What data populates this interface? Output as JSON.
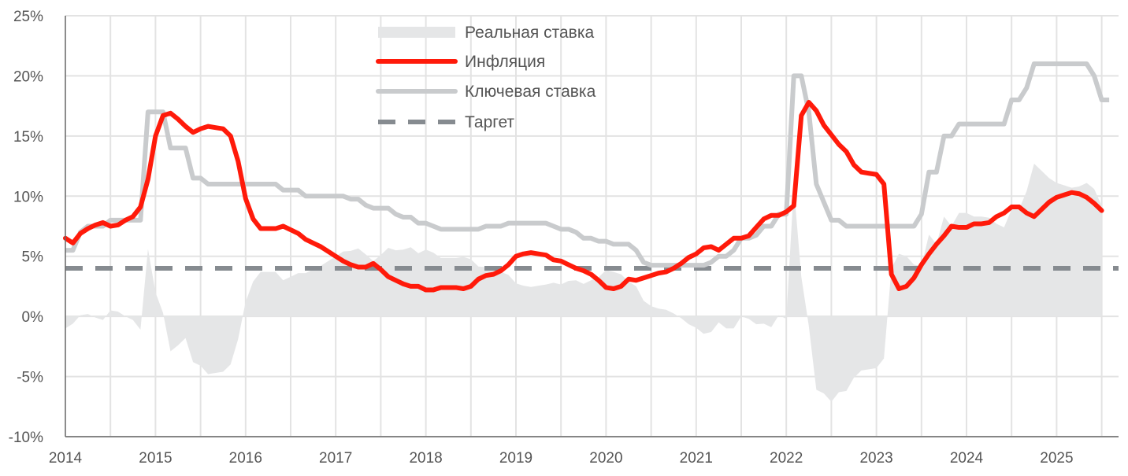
{
  "chart_data": {
    "type": "line",
    "title": "",
    "xlabel": "",
    "ylabel": "",
    "x_start": 2014.0,
    "x_step_months": 1,
    "xlim": [
      2014,
      2025.7
    ],
    "ylim": [
      -10,
      25
    ],
    "x_ticks": [
      "2014",
      "2015",
      "2016",
      "2017",
      "2018",
      "2019",
      "2020",
      "2021",
      "2022",
      "2023",
      "2024",
      "2025"
    ],
    "y_ticks": [
      "25%",
      "20%",
      "15%",
      "10%",
      "5%",
      "0%",
      "-5%",
      "-10%"
    ],
    "y_tick_values": [
      25,
      20,
      15,
      10,
      5,
      0,
      -5,
      -10
    ],
    "grid": true,
    "legend_position": "top-center",
    "colors": {
      "real": "#e5e6e7",
      "inflation": "#ff1a0a",
      "key": "#c9cbcd",
      "target": "#868b90",
      "axis": "#555555",
      "grid": "#e3e3e3"
    },
    "series": [
      {
        "name": "Реальная ставка",
        "kind": "area",
        "values": [
          -1,
          -0.6,
          0.1,
          0.2,
          -0.1,
          -0.3,
          0.5,
          0.4,
          0,
          -0.3,
          -1.1,
          5.6,
          2,
          0.3,
          -2.9,
          -2.4,
          -1.8,
          -3.8,
          -4.1,
          -4.8,
          -4.7,
          -4.6,
          -4,
          -1.9,
          1.2,
          2.9,
          3.7,
          3.7,
          3.7,
          3,
          3.3,
          3.6,
          3.6,
          3.9,
          4.2,
          4.6,
          5,
          5.4,
          5.45,
          5.65,
          5.15,
          4.6,
          5.1,
          5.7,
          5.5,
          5.55,
          5.75,
          5.25,
          5.55,
          5.3,
          4.85,
          4.85,
          4.85,
          4.95,
          4.75,
          4.15,
          4.1,
          4,
          3.7,
          3.45,
          2.75,
          2.55,
          2.45,
          2.55,
          2.65,
          2.8,
          2.65,
          2.95,
          3,
          2.7,
          3,
          3.25,
          3.85,
          3.7,
          3.5,
          2.9,
          2.5,
          1.3,
          0.85,
          0.65,
          0.55,
          0.25,
          -0.15,
          -0.65,
          -0.95,
          -1.45,
          -1.3,
          -0.5,
          -1,
          -1,
          0,
          -0.2,
          -0.65,
          -0.6,
          -0.9,
          0.1,
          -0.2,
          10.8,
          3.3,
          -0.8,
          -6.1,
          -6.4,
          -7.1,
          -6.3,
          -6.2,
          -5.1,
          -4.5,
          -4.4,
          -4.3,
          -3.5,
          4,
          5.2,
          5,
          4.3,
          4.2,
          6.8,
          6,
          8.3,
          7.5,
          8.6,
          8.6,
          8.3,
          8.3,
          8.2,
          7.7,
          7.4,
          8.9,
          8.9,
          10.4,
          12.7,
          12.1,
          11.5,
          11.1,
          10.9,
          10.7,
          10.8,
          11.1,
          10.6,
          9.2
        ]
      },
      {
        "name": "Инфляция",
        "kind": "line",
        "values": [
          6.5,
          6.1,
          6.9,
          7.3,
          7.6,
          7.8,
          7.5,
          7.6,
          8.0,
          8.3,
          9.1,
          11.4,
          15.0,
          16.7,
          16.9,
          16.4,
          15.8,
          15.3,
          15.6,
          15.8,
          15.7,
          15.6,
          15.0,
          12.9,
          9.8,
          8.1,
          7.3,
          7.3,
          7.3,
          7.5,
          7.2,
          6.9,
          6.4,
          6.1,
          5.8,
          5.4,
          5.0,
          4.6,
          4.3,
          4.1,
          4.1,
          4.4,
          3.9,
          3.3,
          3.0,
          2.7,
          2.5,
          2.5,
          2.2,
          2.2,
          2.4,
          2.4,
          2.4,
          2.3,
          2.5,
          3.1,
          3.4,
          3.5,
          3.8,
          4.3,
          5.0,
          5.2,
          5.3,
          5.2,
          5.1,
          4.7,
          4.6,
          4.3,
          4.0,
          3.8,
          3.5,
          3.0,
          2.4,
          2.3,
          2.5,
          3.1,
          3.0,
          3.2,
          3.4,
          3.6,
          3.7,
          4.0,
          4.4,
          4.9,
          5.2,
          5.7,
          5.8,
          5.5,
          6.0,
          6.5,
          6.5,
          6.7,
          7.4,
          8.1,
          8.4,
          8.4,
          8.7,
          9.2,
          16.7,
          17.8,
          17.1,
          15.9,
          15.1,
          14.3,
          13.7,
          12.6,
          12.0,
          11.9,
          11.8,
          11.0,
          3.5,
          2.3,
          2.5,
          3.2,
          4.3,
          5.2,
          6.0,
          6.7,
          7.5,
          7.4,
          7.4,
          7.7,
          7.7,
          7.8,
          8.3,
          8.6,
          9.1,
          9.1,
          8.6,
          8.3,
          8.9,
          9.5,
          9.9,
          10.1,
          10.3,
          10.2,
          9.9,
          9.4,
          8.8
        ]
      },
      {
        "name": "Ключевая ставка",
        "kind": "line",
        "values": [
          5.5,
          5.5,
          7,
          7.5,
          7.5,
          7.5,
          8,
          8,
          8,
          8,
          8,
          17,
          17,
          17,
          14,
          14,
          14,
          11.5,
          11.5,
          11,
          11,
          11,
          11,
          11,
          11,
          11,
          11,
          11,
          11,
          10.5,
          10.5,
          10.5,
          10,
          10,
          10,
          10,
          10,
          10,
          9.75,
          9.75,
          9.25,
          9,
          9,
          9,
          8.5,
          8.25,
          8.25,
          7.75,
          7.75,
          7.5,
          7.25,
          7.25,
          7.25,
          7.25,
          7.25,
          7.25,
          7.5,
          7.5,
          7.5,
          7.75,
          7.75,
          7.75,
          7.75,
          7.75,
          7.75,
          7.5,
          7.25,
          7.25,
          7,
          6.5,
          6.5,
          6.25,
          6.25,
          6,
          6,
          6,
          5.5,
          4.5,
          4.25,
          4.25,
          4.25,
          4.25,
          4.25,
          4.25,
          4.25,
          4.25,
          4.5,
          5,
          5,
          5.5,
          6.5,
          6.5,
          6.75,
          7.5,
          7.5,
          8.5,
          8.5,
          20,
          20,
          17,
          11,
          9.5,
          8,
          8,
          7.5,
          7.5,
          7.5,
          7.5,
          7.5,
          7.5,
          7.5,
          7.5,
          7.5,
          7.5,
          8.5,
          12,
          12,
          15,
          15,
          16,
          16,
          16,
          16,
          16,
          16,
          16,
          18,
          18,
          19,
          21,
          21,
          21,
          21,
          21,
          21,
          21,
          21,
          20,
          18,
          18
        ]
      },
      {
        "name": "Таргет",
        "kind": "hline",
        "values": [
          4
        ]
      }
    ]
  }
}
